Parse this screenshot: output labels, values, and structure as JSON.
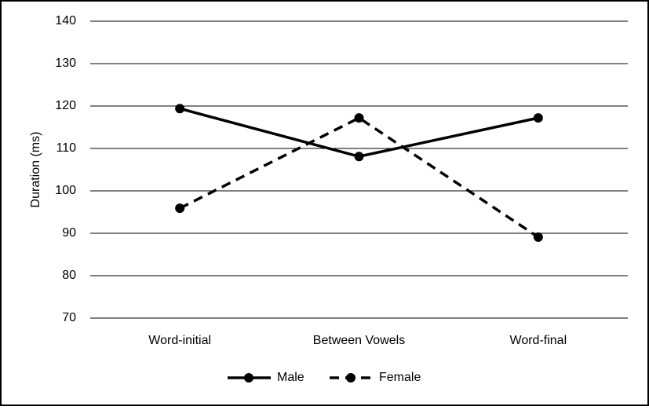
{
  "chart_data": {
    "type": "line",
    "y_label": "Duration (ms)",
    "categories": [
      "Word-initial",
      "Between Vowels",
      "Word-final"
    ],
    "series": [
      {
        "name": "Male",
        "color": "#000000",
        "style": "solid",
        "values": [
          119.4,
          108.1,
          117.2
        ]
      },
      {
        "name": "Female",
        "color": "#000000",
        "style": "dashed",
        "values": [
          95.9,
          117.2,
          89.1
        ]
      }
    ],
    "ylim": [
      70,
      140
    ],
    "yticks": [
      70,
      80,
      90,
      100,
      110,
      120,
      130,
      140
    ],
    "grid": true,
    "legend": "bottom"
  }
}
